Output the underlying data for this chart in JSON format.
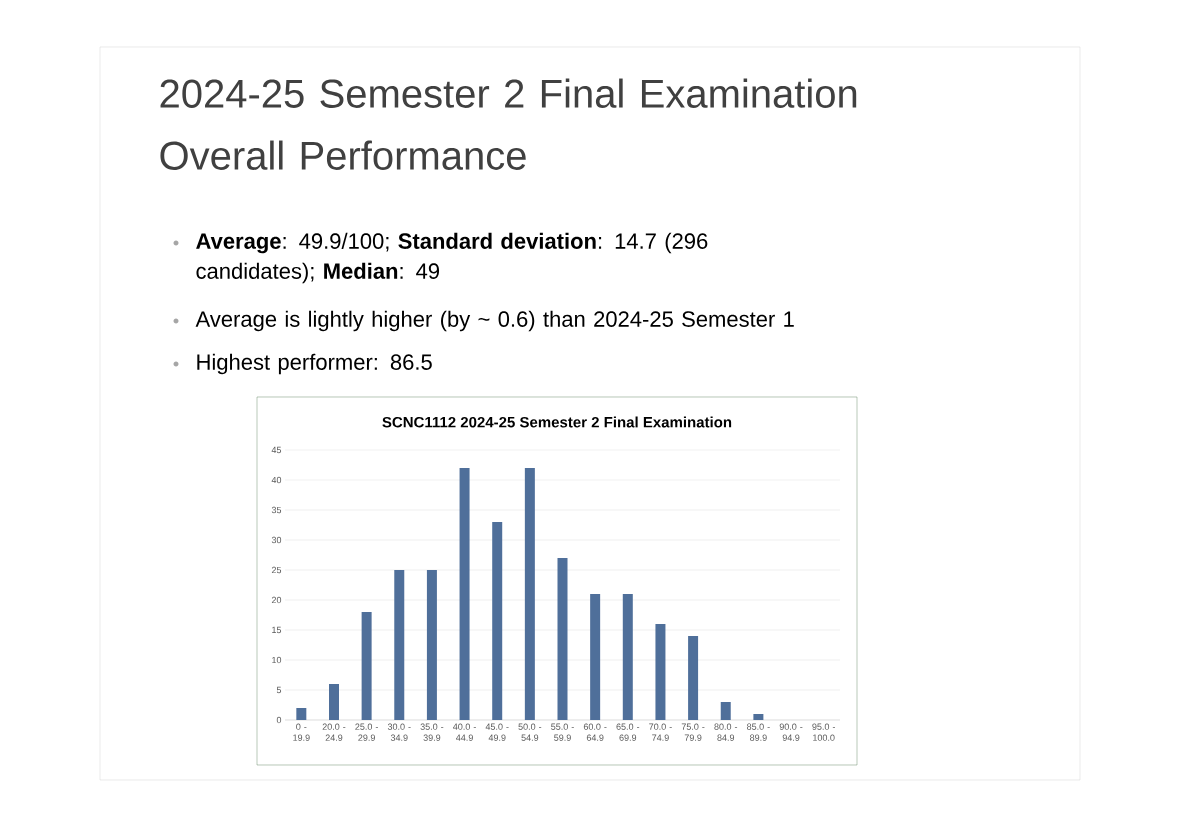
{
  "chart_data": {
    "type": "bar",
    "title": "2024-25 Semester 2 Final Examination Overall Performance",
    "subtitle": "SCNC1112 2024-25 Semester 2 Final Examination",
    "annotations": [
      "**Average**: 49.9/100; **Standard deviation**: 14.7 (296 candidates); **Median**: 49",
      "Average is lightly higher (by ~ 0.6) than 2024-25 Semester 1",
      "Highest performer: 86.5"
    ],
    "categories": [
      "0 - 19.9",
      "20.0 - 24.9",
      "25.0 - 29.9",
      "30.0 - 34.9",
      "35.0 - 39.9",
      "40.0 - 44.9",
      "45.0 - 49.9",
      "50.0 - 54.9",
      "55.0 - 59.9",
      "60.0 - 64.9",
      "65.0 - 69.9",
      "70.0 - 74.9",
      "75.0 - 79.9",
      "80.0 - 84.9",
      "85.0 - 89.9",
      "90.0 - 94.9",
      "95.0 - 100.0"
    ],
    "values": [
      2,
      6,
      18,
      25,
      25,
      42,
      33,
      42,
      27,
      21,
      21,
      16,
      14,
      3,
      1,
      0,
      0
    ],
    "color": "#4f6f9a",
    "ylim": [
      0,
      45
    ],
    "yticks": [
      0,
      5,
      10,
      15,
      20,
      25,
      30,
      35,
      40,
      45
    ],
    "grid": "y"
  }
}
